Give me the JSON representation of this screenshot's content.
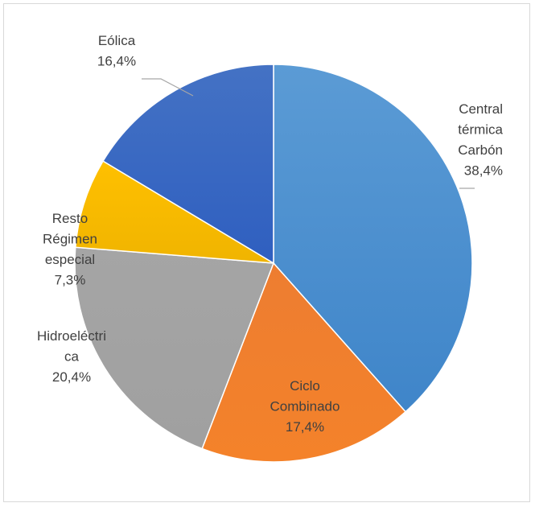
{
  "chart_data": {
    "type": "pie",
    "title": "",
    "legend": "none",
    "slices": [
      {
        "name": "Central térmica Carbón",
        "label_lines": [
          "Central",
          "térmica",
          "Carbón"
        ],
        "value": 38.4,
        "value_label": "38,4%",
        "color": "#5b9bd5",
        "color_dark": "#3f85c9"
      },
      {
        "name": "Ciclo Combinado",
        "label_lines": [
          "Ciclo",
          "Combinado"
        ],
        "value": 17.4,
        "value_label": "17,4%",
        "color": "#ed7d31",
        "color_dark": "#f4822a"
      },
      {
        "name": "Hidroeléctrica",
        "label_lines": [
          "Hidroeléctri",
          "ca"
        ],
        "value": 20.4,
        "value_label": "20,4%",
        "color": "#a5a5a5",
        "color_dark": "#a0a0a0"
      },
      {
        "name": "Resto Régimen especial",
        "label_lines": [
          "Resto",
          "Régimen",
          "especial"
        ],
        "value": 7.3,
        "value_label": "7,3%",
        "color": "#ffc000",
        "color_dark": "#f0b400"
      },
      {
        "name": "Eólica",
        "label_lines": [
          "Eólica"
        ],
        "value": 16.4,
        "value_label": "16,4%",
        "color": "#4472c4",
        "color_dark": "#2f5fc0"
      }
    ]
  }
}
